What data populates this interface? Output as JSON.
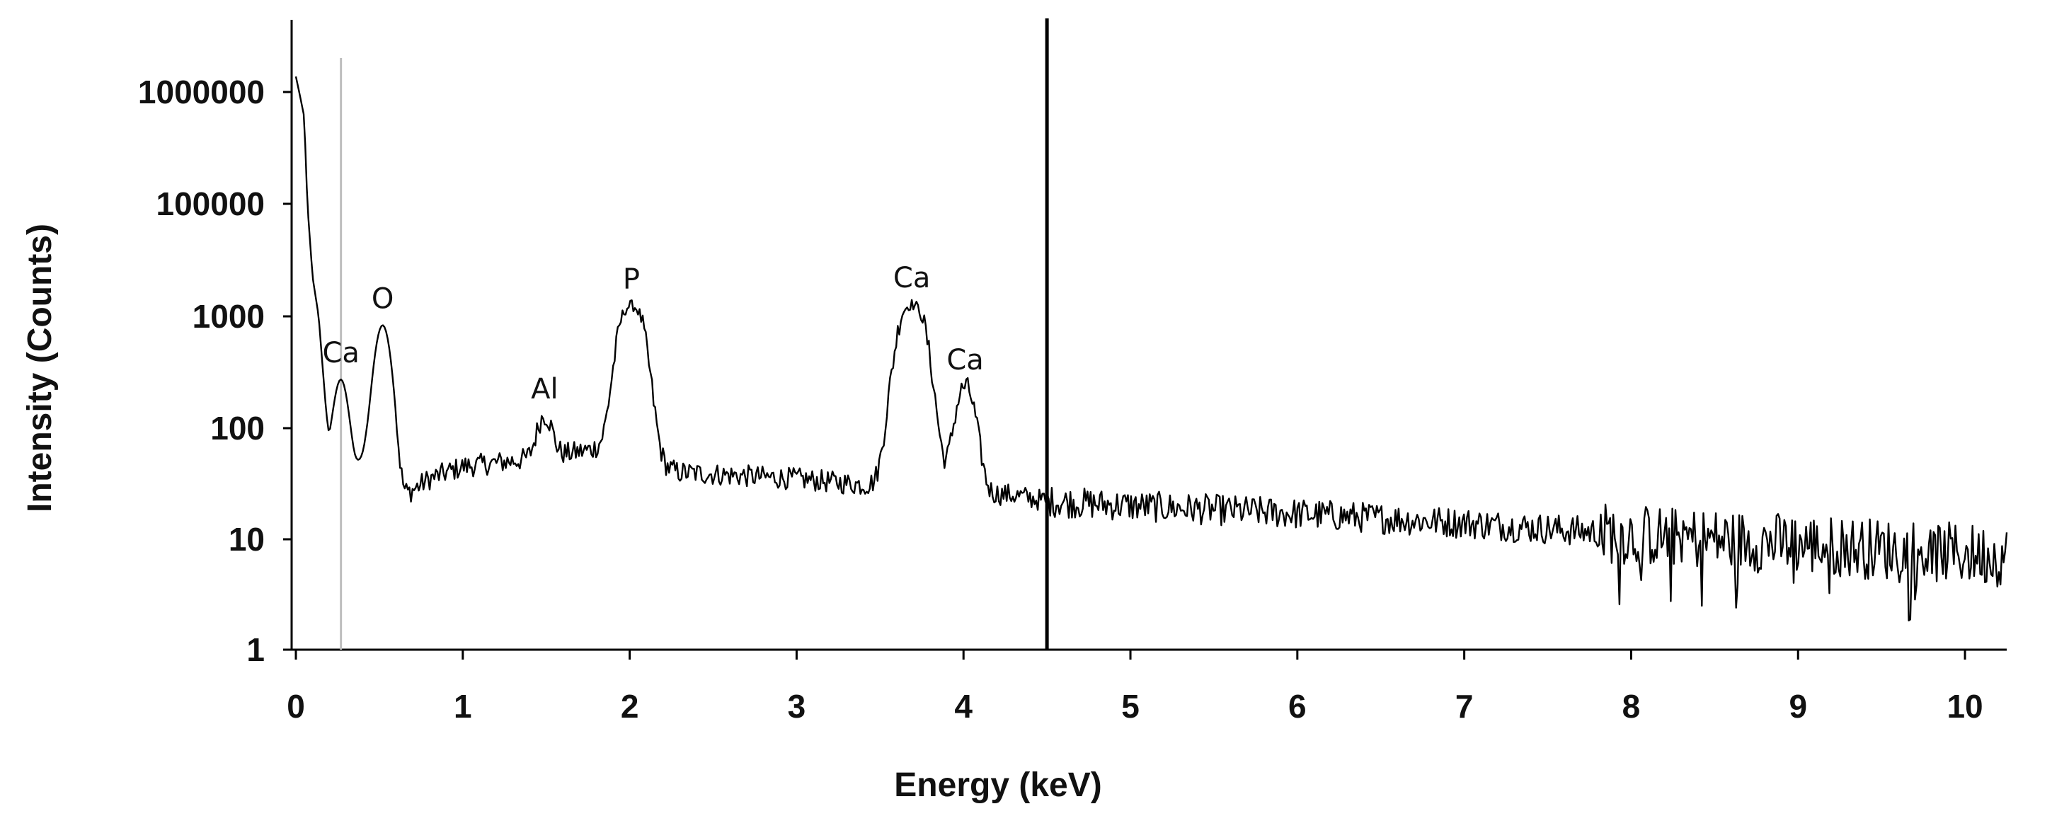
{
  "chart_data": {
    "type": "line",
    "title": "",
    "xlabel": "Energy (keV)",
    "ylabel": "Intensity (Counts)",
    "xlim": [
      0,
      10.25
    ],
    "x_ticks": [
      0,
      1,
      2,
      3,
      4,
      5,
      6,
      7,
      8,
      9,
      10
    ],
    "y_scale": "log-like (labels not evenly spaced by decade)",
    "y_ticks": [
      "1",
      "10",
      "100",
      "1000",
      "100000",
      "1000000"
    ],
    "y_tick_values": [
      1,
      10,
      100,
      1000,
      100000,
      1000000
    ],
    "grid": false,
    "legend": "none",
    "peaks": [
      {
        "label": "Ca",
        "energy": 0.27,
        "counts": 220
      },
      {
        "label": "O",
        "energy": 0.52,
        "counts": 800
      },
      {
        "label": "Al",
        "energy": 1.49,
        "counts": 75
      },
      {
        "label": "P",
        "energy": 2.01,
        "counts": 1500
      },
      {
        "label": "Ca",
        "energy": 3.69,
        "counts": 1600
      },
      {
        "label": "Ca",
        "energy": 4.01,
        "counts": 210
      }
    ],
    "vertical_markers": [
      {
        "energy": 0.27,
        "color": "#bdbdbd"
      },
      {
        "energy": 4.5,
        "color": "#000000"
      }
    ],
    "background_counts": {
      "x": [
        0.0,
        0.05,
        0.1,
        0.2,
        0.35,
        0.42,
        0.6,
        0.8,
        1.0,
        1.5,
        1.8,
        2.3,
        3.0,
        3.5,
        4.3,
        4.5,
        5.0,
        6.0,
        7.0,
        8.0,
        9.0,
        10.25
      ],
      "y": [
        1400000,
        600000,
        5000,
        60,
        45,
        55,
        22,
        35,
        45,
        55,
        65,
        40,
        35,
        30,
        25,
        22,
        20,
        17,
        14,
        11,
        9,
        7
      ]
    },
    "line_color": "#000000"
  }
}
